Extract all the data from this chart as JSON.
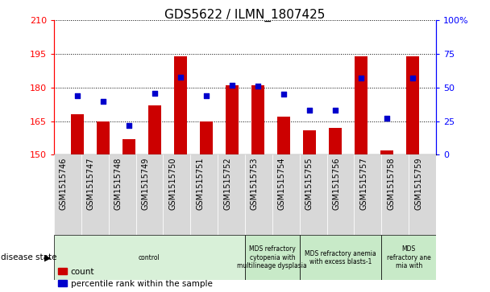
{
  "title": "GDS5622 / ILMN_1807425",
  "samples": [
    "GSM1515746",
    "GSM1515747",
    "GSM1515748",
    "GSM1515749",
    "GSM1515750",
    "GSM1515751",
    "GSM1515752",
    "GSM1515753",
    "GSM1515754",
    "GSM1515755",
    "GSM1515756",
    "GSM1515757",
    "GSM1515758",
    "GSM1515759"
  ],
  "count_values": [
    168,
    165,
    157,
    172,
    194,
    165,
    181,
    181,
    167,
    161,
    162,
    194,
    152,
    194
  ],
  "percentile_values": [
    44,
    40,
    22,
    46,
    58,
    44,
    52,
    51,
    45,
    33,
    33,
    57,
    27,
    57
  ],
  "ylim_left": [
    150,
    210
  ],
  "ylim_right": [
    0,
    100
  ],
  "yticks_left": [
    150,
    165,
    180,
    195,
    210
  ],
  "yticks_right": [
    0,
    25,
    50,
    75,
    100
  ],
  "bar_color": "#cc0000",
  "dot_color": "#0000cc",
  "background_plot": "#ffffff",
  "disease_groups": [
    {
      "label": "control",
      "start": 0,
      "end": 7,
      "color": "#d8f0d8"
    },
    {
      "label": "MDS refractory\ncytopenia with\nmultilineage dysplasia",
      "start": 7,
      "end": 9,
      "color": "#c8eac8"
    },
    {
      "label": "MDS refractory anemia\nwith excess blasts-1",
      "start": 9,
      "end": 12,
      "color": "#c8eac8"
    },
    {
      "label": "MDS\nrefractory ane\nmia with",
      "start": 12,
      "end": 14,
      "color": "#c8eac8"
    }
  ],
  "legend_count_label": "count",
  "legend_percentile_label": "percentile rank within the sample",
  "disease_state_label": "disease state",
  "tick_label_fontsize": 7.0,
  "title_fontsize": 11,
  "right_yticklabels": [
    "0",
    "25",
    "50",
    "75",
    "100%"
  ]
}
